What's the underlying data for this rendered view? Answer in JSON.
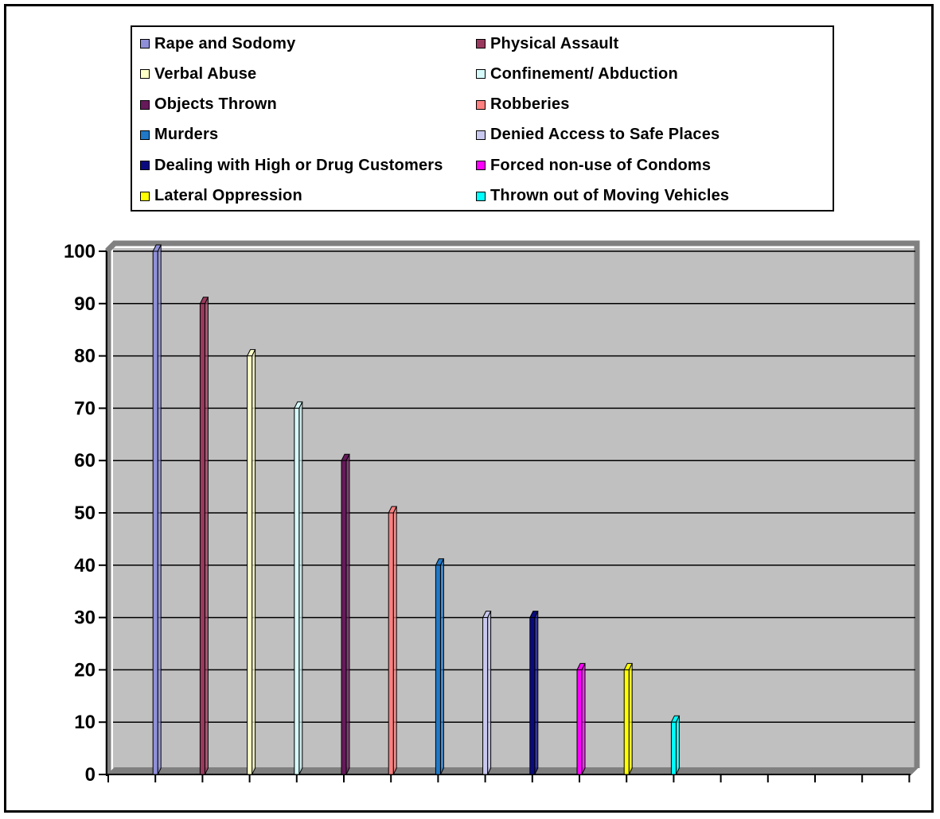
{
  "chart_data": {
    "type": "bar",
    "categories": [
      "Rape and Sodomy",
      "Physical Assault",
      "Verbal Abuse",
      "Confinement/ Abduction",
      "Objects Thrown",
      "Robberies",
      "Murders",
      "Denied Access to Safe Places",
      "Dealing with High or Drug Customers",
      "Forced non-use of Condoms",
      "Lateral Oppression",
      "Thrown out of Moving Vehicles"
    ],
    "values": [
      100,
      90,
      80,
      70,
      60,
      50,
      40,
      30,
      30,
      20,
      20,
      10
    ],
    "colors": [
      "#8F8FD9",
      "#9B3A5E",
      "#FFFFC8",
      "#D6FAFA",
      "#661A5A",
      "#FF8080",
      "#1F78C8",
      "#C8C8F0",
      "#0A0A80",
      "#FF00FF",
      "#FFFF00",
      "#00FFFF"
    ],
    "title": "",
    "xlabel": "",
    "ylabel": "",
    "ylim": [
      0,
      100
    ],
    "yticks": [
      "0",
      "10",
      "20",
      "30",
      "40",
      "50",
      "60",
      "70",
      "80",
      "90",
      "100"
    ],
    "grid": true,
    "plot_background": "#C0C0C0",
    "legend_position": "top"
  }
}
